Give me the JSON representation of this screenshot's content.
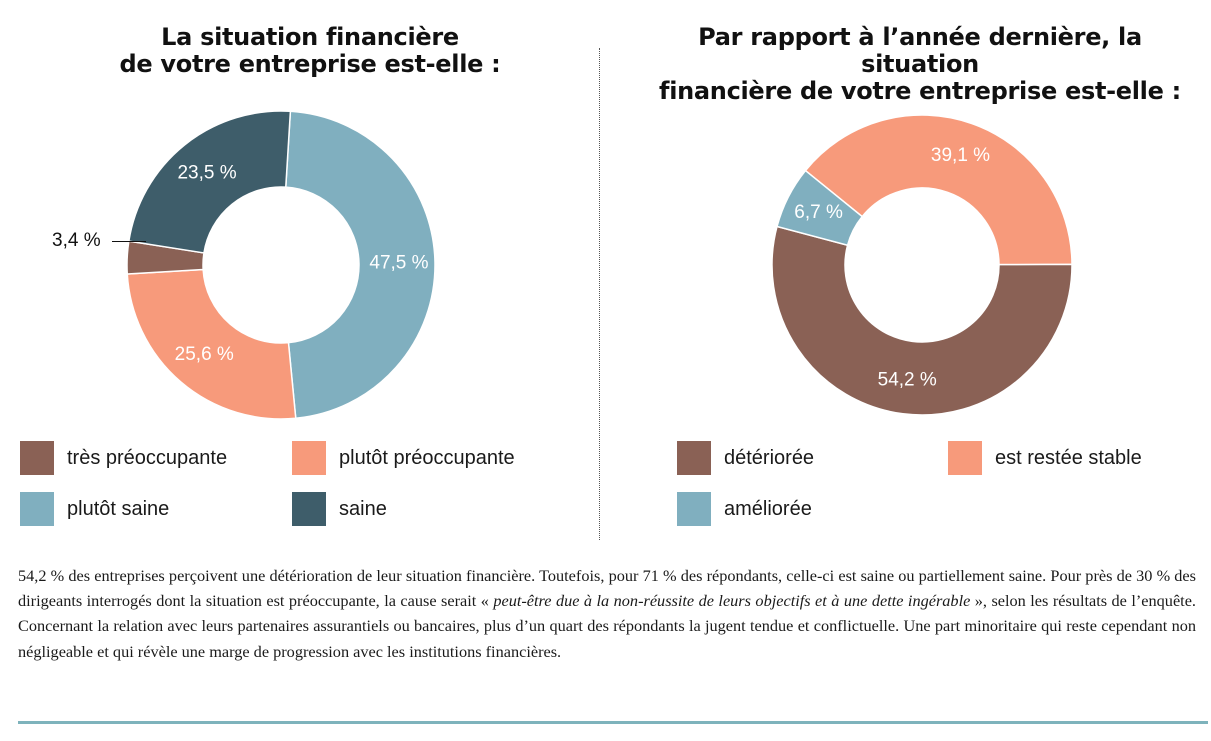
{
  "chart_data": [
    {
      "type": "pie",
      "variant": "donut",
      "title": [
        "La situation financière",
        "de votre entreprise est-elle :"
      ],
      "slices": [
        {
          "name": "plutôt saine",
          "value": 47.5,
          "label": "47,5 %",
          "color": "#80afbf"
        },
        {
          "name": "plutôt préoccupante",
          "value": 25.6,
          "label": "25,6 %",
          "color": "#f79a7b"
        },
        {
          "name": "très préoccupante",
          "value": 3.4,
          "label": "3,4 %",
          "color": "#8a6155"
        },
        {
          "name": "saine",
          "value": 23.5,
          "label": "23,5 %",
          "color": "#3e5d6a"
        }
      ],
      "legend": [
        {
          "label": "très préoccupante",
          "color": "#8a6155"
        },
        {
          "label": "plutôt préoccupante",
          "color": "#f79a7b"
        },
        {
          "label": "plutôt saine",
          "color": "#80afbf"
        },
        {
          "label": "saine",
          "color": "#3e5d6a"
        }
      ],
      "legend_position": "bottom"
    },
    {
      "type": "pie",
      "variant": "donut",
      "title": [
        "Par rapport à l’année dernière, la situation",
        "financière de votre entreprise est-elle :"
      ],
      "slices": [
        {
          "name": "est restée stable",
          "value": 39.1,
          "label": "39,1 %",
          "color": "#f79a7b"
        },
        {
          "name": "détériorée",
          "value": 54.2,
          "label": "54,2 %",
          "color": "#8a6155"
        },
        {
          "name": "améliorée",
          "value": 6.7,
          "label": "6,7 %",
          "color": "#80afbf"
        }
      ],
      "legend": [
        {
          "label": "détériorée",
          "color": "#8a6155"
        },
        {
          "label": "est restée stable",
          "color": "#f79a7b"
        },
        {
          "label": "améliorée",
          "color": "#80afbf"
        }
      ],
      "legend_position": "bottom"
    }
  ],
  "body_text": {
    "part1": "54,2 % des entreprises perçoivent une détérioration de leur situation financière. Toutefois, pour 71 % des répondants, celle-ci est saine ou partiellement saine. Pour près de 30 % des dirigeants interrogés dont la situation est préoccupante, la cause serait « ",
    "quote": "peut-être due à la non-réussite de leurs objectifs et à une dette ingérable",
    "part2": " », selon les résultats de l’enquête. Concernant la relation avec leurs partenaires assurantiels ou bancaires, plus d’un quart des répondants la jugent tendue et conflictuelle. Une part minoritaire qui reste cependant non négligeable et qui révèle une marge de progression avec les institutions financières."
  },
  "colors": {
    "divider": "#555555",
    "rule": "#7eb3bc"
  }
}
